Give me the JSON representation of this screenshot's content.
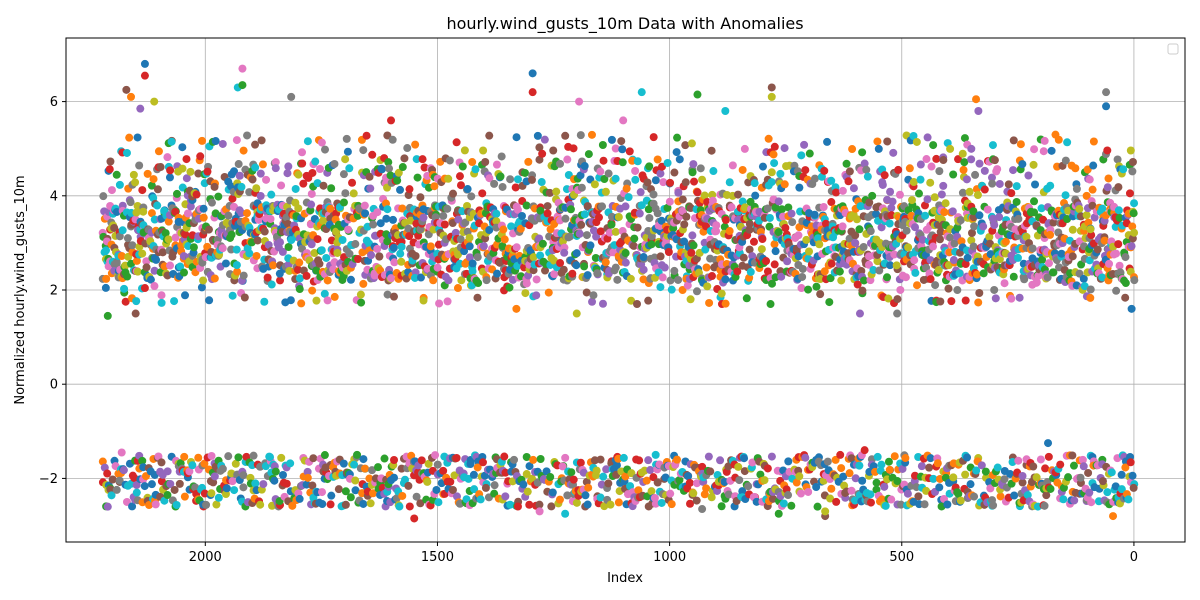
{
  "chart_data": {
    "type": "scatter",
    "title": "hourly.wind_gusts_10m Data with Anomalies",
    "xlabel": "Index",
    "ylabel": "Normalized hourly.wind_gusts_10m",
    "xlim": [
      2300,
      -110
    ],
    "ylim": [
      -3.35,
      7.35
    ],
    "x_inverted": true,
    "grid": true,
    "legend": {
      "placement": "top-right",
      "entries": []
    },
    "x_ticks": [
      2000,
      1500,
      1000,
      500,
      0
    ],
    "y_ticks": [
      -2,
      0,
      2,
      4,
      6
    ],
    "colors": [
      "#1f77b4",
      "#ff7f0e",
      "#2ca02c",
      "#d62728",
      "#9467bd",
      "#8c564b",
      "#e377c2",
      "#7f7f7f",
      "#bcbd22",
      "#17becf"
    ],
    "point_groups": [
      {
        "name": "upper cluster",
        "x_range": [
          2220,
          0
        ],
        "y_range": [
          1.7,
          4.8
        ],
        "density": "dense"
      },
      {
        "name": "lower cluster",
        "x_range": [
          2220,
          0
        ],
        "y_range": [
          -2.6,
          -1.5
        ],
        "density": "dense"
      }
    ],
    "outliers": [
      {
        "x": 2130,
        "y": 6.8
      },
      {
        "x": 2130,
        "y": 6.55
      },
      {
        "x": 1920,
        "y": 6.7
      },
      {
        "x": 1930,
        "y": 6.3
      },
      {
        "x": 1920,
        "y": 6.35
      },
      {
        "x": 2170,
        "y": 6.25
      },
      {
        "x": 2110,
        "y": 6.0
      },
      {
        "x": 2160,
        "y": 6.1
      },
      {
        "x": 2140,
        "y": 5.85
      },
      {
        "x": 1815,
        "y": 6.1
      },
      {
        "x": 1295,
        "y": 6.6
      },
      {
        "x": 1295,
        "y": 6.2
      },
      {
        "x": 1195,
        "y": 6.0
      },
      {
        "x": 1060,
        "y": 6.2
      },
      {
        "x": 940,
        "y": 6.15
      },
      {
        "x": 780,
        "y": 6.3
      },
      {
        "x": 780,
        "y": 6.1
      },
      {
        "x": 340,
        "y": 6.05
      },
      {
        "x": 335,
        "y": 5.8
      },
      {
        "x": 60,
        "y": 6.2
      },
      {
        "x": 60,
        "y": 5.9
      },
      {
        "x": 1600,
        "y": 5.6
      },
      {
        "x": 1100,
        "y": 5.6
      },
      {
        "x": 880,
        "y": 5.8
      },
      {
        "x": 2210,
        "y": 1.45
      },
      {
        "x": 2150,
        "y": 1.5
      },
      {
        "x": 1200,
        "y": 1.5
      },
      {
        "x": 1330,
        "y": 1.6
      },
      {
        "x": 590,
        "y": 1.5
      },
      {
        "x": 510,
        "y": 1.5
      },
      {
        "x": 5,
        "y": 1.6
      },
      {
        "x": 1550,
        "y": -2.85
      },
      {
        "x": 1280,
        "y": -2.7
      },
      {
        "x": 1225,
        "y": -2.75
      },
      {
        "x": 765,
        "y": -2.75
      },
      {
        "x": 665,
        "y": -2.8
      },
      {
        "x": 665,
        "y": -2.7
      },
      {
        "x": 45,
        "y": -2.8
      },
      {
        "x": 2210,
        "y": -2.6
      },
      {
        "x": 930,
        "y": -2.65
      },
      {
        "x": 185,
        "y": -1.25
      },
      {
        "x": 580,
        "y": -1.4
      },
      {
        "x": 2180,
        "y": -1.45
      },
      {
        "x": 1030,
        "y": -1.5
      }
    ]
  }
}
